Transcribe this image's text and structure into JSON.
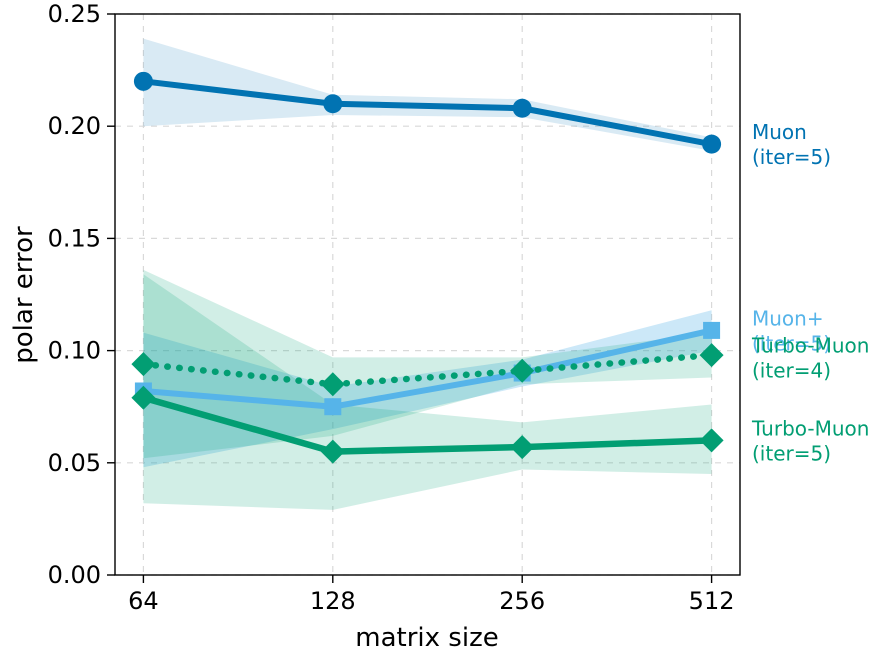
{
  "chart_data": {
    "type": "line",
    "title": "",
    "xlabel": "matrix size",
    "ylabel": "polar error",
    "x": [
      64,
      128,
      256,
      512
    ],
    "xtick_labels": [
      "64",
      "128",
      "256",
      "512"
    ],
    "x_scale": "log2",
    "ylim": [
      0.0,
      0.25
    ],
    "yticks": [
      0.0,
      0.05,
      0.1,
      0.15,
      0.2,
      0.25
    ],
    "ytick_labels": [
      "0.00",
      "0.05",
      "0.10",
      "0.15",
      "0.20",
      "0.25"
    ],
    "grid": true,
    "grid_style": "dashed",
    "grid_color": "#d9d9d9",
    "spine_color": "#000000",
    "legend_position": "right-outside-inline-labels",
    "series": [
      {
        "name": "Muon (iter=5)",
        "label_lines": [
          "Muon",
          "(iter=5)"
        ],
        "label_y": 0.192,
        "color": "#0173b2",
        "marker": "circle",
        "line_style": "solid",
        "line_width": 6,
        "values": [
          0.22,
          0.21,
          0.208,
          0.192
        ],
        "band_lower": [
          0.2,
          0.205,
          0.204,
          0.189
        ],
        "band_upper": [
          0.239,
          0.214,
          0.212,
          0.195
        ],
        "band_opacity": 0.15
      },
      {
        "name": "Muon+ (iter=5)",
        "label_lines": [
          "Muon+",
          "(iter=5)"
        ],
        "label_y": 0.109,
        "color": "#56b4e9",
        "marker": "square",
        "line_style": "solid",
        "line_width": 6,
        "values": [
          0.082,
          0.075,
          0.09,
          0.109
        ],
        "band_lower": [
          0.048,
          0.065,
          0.084,
          0.1
        ],
        "band_upper": [
          0.108,
          0.084,
          0.096,
          0.118
        ],
        "band_opacity": 0.3
      },
      {
        "name": "Turbo-Muon (iter=4)",
        "label_lines": [
          "Turbo-Muon",
          "(iter=4)"
        ],
        "label_y": 0.097,
        "color": "#029e73",
        "marker": "diamond",
        "line_style": "dotted",
        "line_width": 6.5,
        "values": [
          0.094,
          0.085,
          0.091,
          0.098
        ],
        "band_lower": [
          0.052,
          0.062,
          0.085,
          0.088
        ],
        "band_upper": [
          0.136,
          0.097,
          0.097,
          0.108
        ],
        "band_opacity": 0.18
      },
      {
        "name": "Turbo-Muon (iter=5)",
        "label_lines": [
          "Turbo-Muon",
          "(iter=5)"
        ],
        "label_y": 0.06,
        "color": "#029e73",
        "marker": "diamond",
        "line_style": "solid",
        "line_width": 6.5,
        "values": [
          0.079,
          0.055,
          0.057,
          0.06
        ],
        "band_lower": [
          0.032,
          0.029,
          0.047,
          0.045
        ],
        "band_upper": [
          0.134,
          0.076,
          0.068,
          0.076
        ],
        "band_opacity": 0.18
      }
    ]
  }
}
